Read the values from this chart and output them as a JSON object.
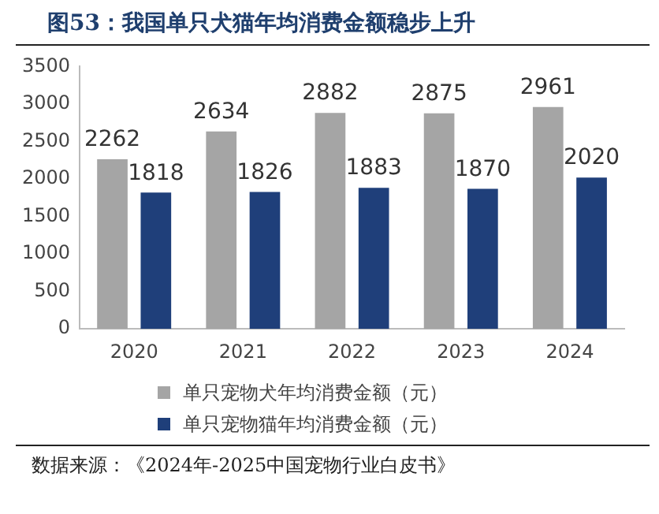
{
  "chart_data": {
    "type": "bar",
    "title": "图53：我国单只犬猫年均消费金额稳步上升",
    "categories": [
      "2020",
      "2021",
      "2022",
      "2023",
      "2024"
    ],
    "series": [
      {
        "name": "单只宠物犬年均消费金额（元）",
        "color": "#a5a5a5",
        "values": [
          2262,
          2634,
          2882,
          2875,
          2961
        ]
      },
      {
        "name": "单只宠物猫年均消费金额（元）",
        "color": "#1f3f7a",
        "values": [
          1818,
          1826,
          1883,
          1870,
          2020
        ]
      }
    ],
    "ylim": [
      0,
      3500
    ],
    "yticks": [
      0,
      500,
      1000,
      1500,
      2000,
      2500,
      3000,
      3500
    ],
    "grid": false,
    "legend": "bottom",
    "data_labels": true,
    "annotations": [
      "数据来源：《2024年-2025中国宠物行业白皮书》"
    ]
  }
}
